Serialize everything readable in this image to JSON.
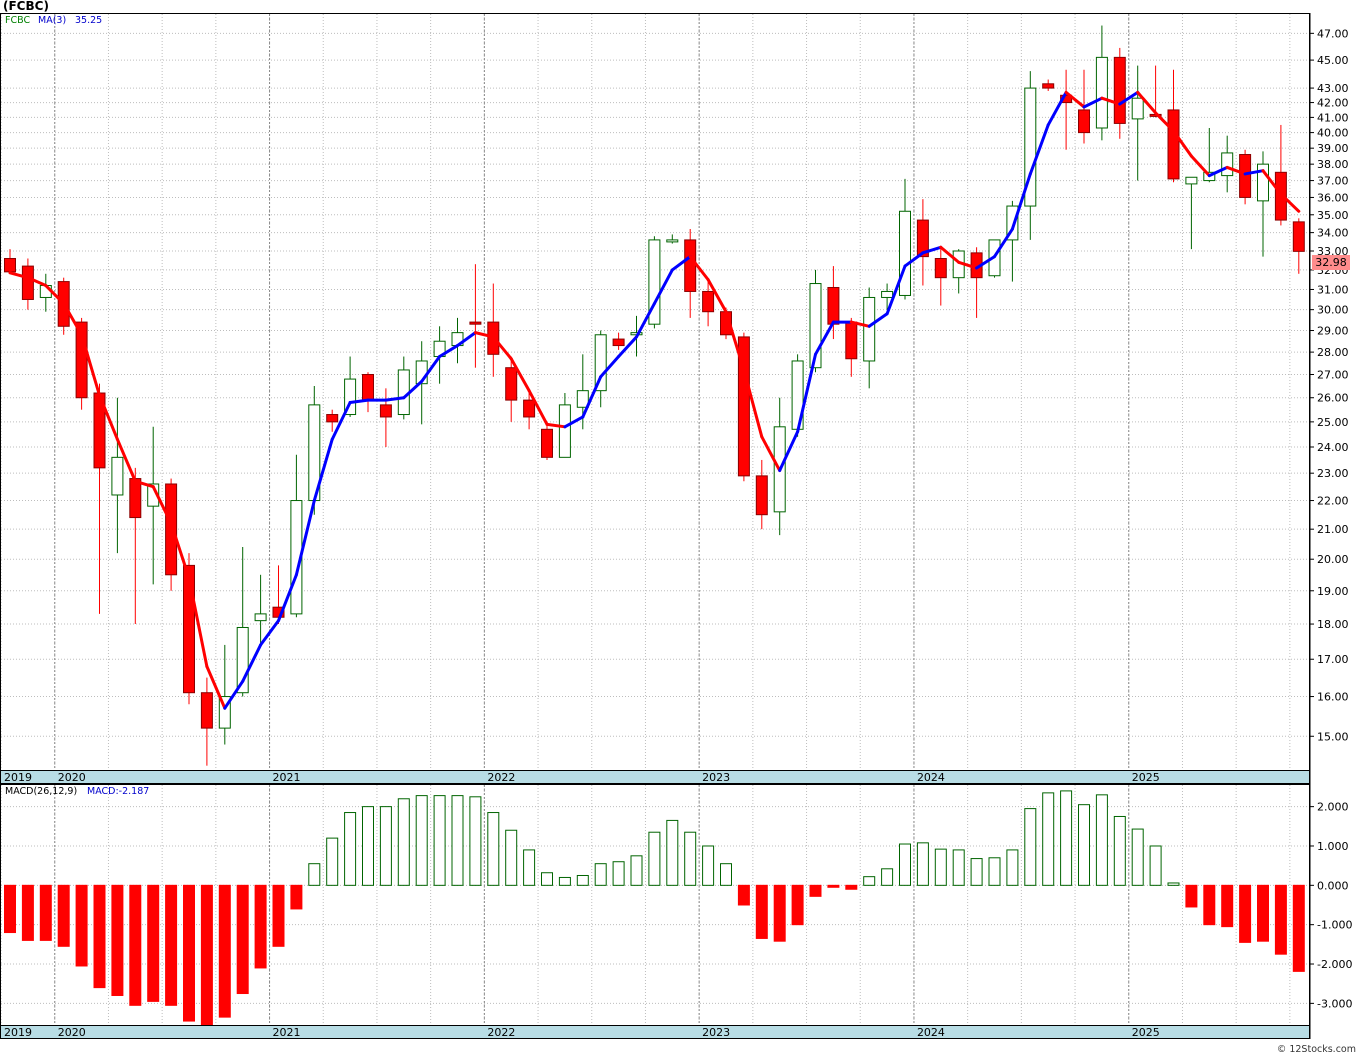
{
  "title": "(FCBC)",
  "price_legend": {
    "symbol": "FCBC",
    "ma_label": "MA(3)",
    "ma_value": "35.25"
  },
  "macd_legend": {
    "label": "MACD(26,12,9)",
    "value": "MACD:-2.187"
  },
  "last_price": "32.98",
  "copyright": "© 12Stocks.com",
  "colors": {
    "up": "#006400",
    "down": "#ff0000",
    "ma_up": "#0000ff",
    "ma_down": "#ff0000",
    "axis_bar": "#b8dde5",
    "grid": "#bdbdbd"
  },
  "chart_data": [
    {
      "type": "candlestick",
      "interval": "monthly",
      "ylim": [
        14.2,
        48.5
      ],
      "y_scale": "log",
      "y_ticks": [
        15,
        16,
        17,
        18,
        19,
        20,
        21,
        22,
        23,
        24,
        25,
        26,
        27,
        28,
        29,
        30,
        31,
        32,
        33,
        34,
        35,
        36,
        37,
        38,
        39,
        40,
        41,
        42,
        43,
        45,
        47
      ],
      "x_labels": [
        "2019",
        "2020",
        "2021",
        "2022",
        "2023",
        "2024",
        "2025"
      ],
      "grid": true,
      "candles": [
        {
          "o": 32.6,
          "h": 33.1,
          "l": 31.8,
          "c": 31.9
        },
        {
          "o": 32.2,
          "h": 32.6,
          "l": 30.0,
          "c": 30.5
        },
        {
          "o": 30.6,
          "h": 31.8,
          "l": 29.9,
          "c": 31.2
        },
        {
          "o": 31.4,
          "h": 31.6,
          "l": 28.8,
          "c": 29.2
        },
        {
          "o": 29.4,
          "h": 29.6,
          "l": 25.5,
          "c": 26.0
        },
        {
          "o": 26.2,
          "h": 26.6,
          "l": 18.3,
          "c": 23.2
        },
        {
          "o": 22.2,
          "h": 26.0,
          "l": 20.2,
          "c": 23.6
        },
        {
          "o": 22.8,
          "h": 23.2,
          "l": 18.0,
          "c": 21.4
        },
        {
          "o": 21.8,
          "h": 24.8,
          "l": 19.2,
          "c": 22.6
        },
        {
          "o": 22.6,
          "h": 22.8,
          "l": 19.0,
          "c": 19.5
        },
        {
          "o": 19.8,
          "h": 20.2,
          "l": 15.8,
          "c": 16.1
        },
        {
          "o": 16.1,
          "h": 16.5,
          "l": 14.3,
          "c": 15.2
        },
        {
          "o": 15.2,
          "h": 17.4,
          "l": 14.8,
          "c": 16.0
        },
        {
          "o": 16.1,
          "h": 20.4,
          "l": 16.0,
          "c": 17.9
        },
        {
          "o": 18.1,
          "h": 19.5,
          "l": 17.4,
          "c": 18.3
        },
        {
          "o": 18.5,
          "h": 19.8,
          "l": 18.0,
          "c": 18.2
        },
        {
          "o": 18.3,
          "h": 23.7,
          "l": 18.2,
          "c": 22.0
        },
        {
          "o": 22.0,
          "h": 26.5,
          "l": 21.5,
          "c": 25.7
        },
        {
          "o": 25.3,
          "h": 25.5,
          "l": 24.6,
          "c": 25.0
        },
        {
          "o": 25.3,
          "h": 27.8,
          "l": 25.2,
          "c": 26.8
        },
        {
          "o": 27.0,
          "h": 27.1,
          "l": 25.4,
          "c": 25.9
        },
        {
          "o": 25.7,
          "h": 26.4,
          "l": 24.0,
          "c": 25.2
        },
        {
          "o": 25.3,
          "h": 27.8,
          "l": 25.1,
          "c": 27.2
        },
        {
          "o": 26.6,
          "h": 28.5,
          "l": 24.9,
          "c": 27.6
        },
        {
          "o": 27.8,
          "h": 29.2,
          "l": 26.6,
          "c": 28.5
        },
        {
          "o": 28.3,
          "h": 29.6,
          "l": 27.5,
          "c": 28.9
        },
        {
          "o": 29.4,
          "h": 32.3,
          "l": 27.3,
          "c": 29.3
        },
        {
          "o": 29.4,
          "h": 31.3,
          "l": 26.9,
          "c": 27.9
        },
        {
          "o": 27.3,
          "h": 27.8,
          "l": 25.0,
          "c": 25.9
        },
        {
          "o": 25.9,
          "h": 26.2,
          "l": 24.7,
          "c": 25.2
        },
        {
          "o": 24.7,
          "h": 24.9,
          "l": 23.5,
          "c": 23.6
        },
        {
          "o": 23.6,
          "h": 26.2,
          "l": 23.6,
          "c": 25.7
        },
        {
          "o": 25.6,
          "h": 27.9,
          "l": 24.7,
          "c": 26.3
        },
        {
          "o": 26.3,
          "h": 29.0,
          "l": 25.6,
          "c": 28.8
        },
        {
          "o": 28.6,
          "h": 28.9,
          "l": 28.1,
          "c": 28.3
        },
        {
          "o": 28.8,
          "h": 29.7,
          "l": 27.8,
          "c": 28.9
        },
        {
          "o": 29.3,
          "h": 33.8,
          "l": 29.1,
          "c": 33.6
        },
        {
          "o": 33.6,
          "h": 33.9,
          "l": 33.4,
          "c": 33.6
        },
        {
          "o": 33.6,
          "h": 34.2,
          "l": 29.6,
          "c": 30.9
        },
        {
          "o": 30.9,
          "h": 31.4,
          "l": 29.2,
          "c": 29.9
        },
        {
          "o": 29.9,
          "h": 30.1,
          "l": 28.6,
          "c": 28.8
        },
        {
          "o": 28.7,
          "h": 28.9,
          "l": 22.7,
          "c": 22.9
        },
        {
          "o": 22.9,
          "h": 23.5,
          "l": 21.0,
          "c": 21.5
        },
        {
          "o": 21.6,
          "h": 26.0,
          "l": 20.8,
          "c": 24.8
        },
        {
          "o": 24.7,
          "h": 27.9,
          "l": 24.4,
          "c": 27.6
        },
        {
          "o": 27.3,
          "h": 32.0,
          "l": 27.1,
          "c": 31.3
        },
        {
          "o": 31.1,
          "h": 32.2,
          "l": 28.6,
          "c": 29.3
        },
        {
          "o": 29.4,
          "h": 29.6,
          "l": 26.9,
          "c": 27.7
        },
        {
          "o": 27.6,
          "h": 31.1,
          "l": 26.4,
          "c": 30.6
        },
        {
          "o": 30.6,
          "h": 31.3,
          "l": 30.0,
          "c": 30.9
        },
        {
          "o": 30.7,
          "h": 37.1,
          "l": 30.5,
          "c": 35.2
        },
        {
          "o": 34.7,
          "h": 35.9,
          "l": 31.2,
          "c": 32.7
        },
        {
          "o": 32.6,
          "h": 33.2,
          "l": 30.2,
          "c": 31.6
        },
        {
          "o": 31.6,
          "h": 33.1,
          "l": 30.8,
          "c": 33.0
        },
        {
          "o": 32.9,
          "h": 33.2,
          "l": 29.6,
          "c": 31.6
        },
        {
          "o": 31.7,
          "h": 33.4,
          "l": 31.6,
          "c": 33.6
        },
        {
          "o": 33.6,
          "h": 35.8,
          "l": 31.4,
          "c": 35.5
        },
        {
          "o": 35.5,
          "h": 44.2,
          "l": 33.6,
          "c": 43.0
        },
        {
          "o": 43.3,
          "h": 43.6,
          "l": 42.8,
          "c": 43.0
        },
        {
          "o": 42.5,
          "h": 44.3,
          "l": 38.9,
          "c": 42.0
        },
        {
          "o": 41.5,
          "h": 44.3,
          "l": 39.3,
          "c": 40.0
        },
        {
          "o": 40.3,
          "h": 47.6,
          "l": 39.5,
          "c": 45.2
        },
        {
          "o": 45.2,
          "h": 45.9,
          "l": 39.6,
          "c": 40.6
        },
        {
          "o": 40.9,
          "h": 44.6,
          "l": 37.0,
          "c": 42.3
        },
        {
          "o": 41.2,
          "h": 44.6,
          "l": 41.0,
          "c": 41.1
        },
        {
          "o": 41.5,
          "h": 44.3,
          "l": 36.9,
          "c": 37.1
        },
        {
          "o": 36.8,
          "h": 37.2,
          "l": 33.1,
          "c": 37.2
        },
        {
          "o": 37.0,
          "h": 40.3,
          "l": 36.9,
          "c": 37.5
        },
        {
          "o": 37.3,
          "h": 39.8,
          "l": 36.3,
          "c": 38.7
        },
        {
          "o": 38.6,
          "h": 38.9,
          "l": 35.6,
          "c": 36.0
        },
        {
          "o": 35.8,
          "h": 38.8,
          "l": 32.7,
          "c": 38.0
        },
        {
          "o": 37.5,
          "h": 40.5,
          "l": 34.4,
          "c": 34.7
        },
        {
          "o": 34.6,
          "h": 34.8,
          "l": 31.8,
          "c": 32.98
        }
      ],
      "ma3": [
        31.85,
        31.6,
        31.2,
        30.3,
        28.8,
        26.1,
        24.3,
        22.7,
        22.5,
        21.2,
        19.4,
        16.8,
        15.7,
        16.4,
        17.4,
        18.1,
        19.5,
        22.0,
        24.3,
        25.8,
        25.9,
        25.9,
        26.0,
        26.7,
        27.8,
        28.3,
        28.9,
        28.7,
        27.7,
        26.3,
        24.9,
        24.8,
        25.2,
        26.9,
        27.8,
        28.7,
        30.3,
        32.0,
        32.7,
        31.5,
        29.9,
        27.2,
        24.4,
        23.1,
        24.6,
        27.9,
        29.4,
        29.4,
        29.2,
        29.8,
        32.2,
        32.9,
        33.2,
        32.4,
        32.1,
        32.7,
        34.2,
        37.4,
        40.5,
        42.7,
        41.7,
        42.3,
        41.9,
        42.7,
        41.3,
        40.1,
        38.5,
        37.3,
        37.8,
        37.4,
        37.6,
        36.2,
        35.2
      ]
    },
    {
      "type": "bar",
      "name": "MACD",
      "ylim": [
        -3.55,
        2.55
      ],
      "y_ticks": [
        -3,
        -2,
        -1,
        0,
        1,
        2
      ],
      "x_labels": [
        "2019",
        "2020",
        "2021",
        "2022",
        "2023",
        "2024",
        "2025"
      ],
      "grid": true,
      "values": [
        -1.2,
        -1.4,
        -1.4,
        -1.55,
        -2.05,
        -2.6,
        -2.8,
        -3.05,
        -2.95,
        -3.05,
        -3.45,
        -3.55,
        -3.35,
        -2.75,
        -2.1,
        -1.55,
        -0.6,
        0.55,
        1.2,
        1.85,
        2.0,
        2.0,
        2.2,
        2.28,
        2.28,
        2.28,
        2.25,
        1.85,
        1.4,
        0.9,
        0.32,
        0.2,
        0.25,
        0.55,
        0.6,
        0.75,
        1.35,
        1.65,
        1.35,
        1.0,
        0.55,
        -0.5,
        -1.35,
        -1.42,
        -1.0,
        -0.28,
        -0.05,
        -0.1,
        0.22,
        0.42,
        1.05,
        1.08,
        0.92,
        0.9,
        0.68,
        0.7,
        0.9,
        1.95,
        2.35,
        2.4,
        2.05,
        2.3,
        1.75,
        1.43,
        1.0,
        0.06,
        -0.55,
        -1.0,
        -1.05,
        -1.45,
        -1.42,
        -1.75,
        -2.187
      ]
    }
  ]
}
